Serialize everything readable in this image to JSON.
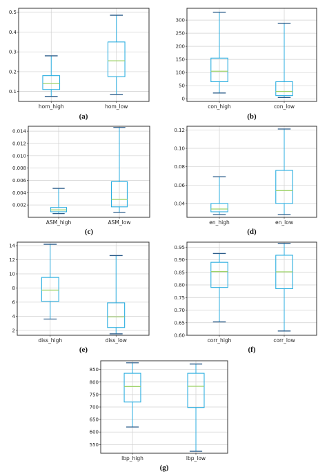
{
  "figure": {
    "panels": [
      {
        "label": "(a)"
      },
      {
        "label": "(b)"
      },
      {
        "label": "(c)"
      },
      {
        "label": "(d)"
      },
      {
        "label": "(e)"
      },
      {
        "label": "(f)"
      },
      {
        "label": "(g)"
      }
    ]
  },
  "colors": {
    "box": "#2aaee0",
    "median": "#9fd36a",
    "whisker_cap": "#2d5d8a",
    "grid": "#d0d0d0",
    "frame": "#333333"
  },
  "chart_data": [
    {
      "type": "box",
      "label": "(a)",
      "categories": [
        "hom_high",
        "hom_low"
      ],
      "ylim": [
        0.05,
        0.52
      ],
      "yticks": [
        0.1,
        0.2,
        0.3,
        0.4,
        0.5
      ],
      "ytick_labels": [
        "0.1",
        "0.2",
        "0.3",
        "0.4",
        "0.5"
      ],
      "grid": true,
      "boxes": [
        {
          "min": 0.075,
          "q1": 0.11,
          "median": 0.14,
          "q3": 0.18,
          "max": 0.28
        },
        {
          "min": 0.085,
          "q1": 0.175,
          "median": 0.255,
          "q3": 0.35,
          "max": 0.485
        }
      ]
    },
    {
      "type": "box",
      "label": "(b)",
      "categories": [
        "con_high",
        "con_low"
      ],
      "ylim": [
        -10,
        345
      ],
      "yticks": [
        0,
        50,
        100,
        150,
        200,
        250,
        300
      ],
      "ytick_labels": [
        "0",
        "50",
        "100",
        "150",
        "200",
        "250",
        "300"
      ],
      "grid": true,
      "boxes": [
        {
          "min": 22,
          "q1": 65,
          "median": 105,
          "q3": 155,
          "max": 330
        },
        {
          "min": 5,
          "q1": 12,
          "median": 28,
          "q3": 65,
          "max": 288
        }
      ]
    },
    {
      "type": "box",
      "label": "(c)",
      "categories": [
        "ASM_high",
        "ASM_low"
      ],
      "ylim": [
        0.0,
        0.0148
      ],
      "yticks": [
        0.002,
        0.004,
        0.006,
        0.008,
        0.01,
        0.012,
        0.014
      ],
      "ytick_labels": [
        "0.002",
        "0.004",
        "0.006",
        "0.008",
        "0.010",
        "0.012",
        "0.014"
      ],
      "grid": true,
      "boxes": [
        {
          "min": 0.0006,
          "q1": 0.0009,
          "median": 0.0012,
          "q3": 0.0016,
          "max": 0.0047
        },
        {
          "min": 0.0008,
          "q1": 0.0017,
          "median": 0.0029,
          "q3": 0.0058,
          "max": 0.0146
        }
      ]
    },
    {
      "type": "box",
      "label": "(d)",
      "categories": [
        "en_high",
        "en_low"
      ],
      "ylim": [
        0.025,
        0.124
      ],
      "yticks": [
        0.04,
        0.06,
        0.08,
        0.1,
        0.12
      ],
      "ytick_labels": [
        "0.04",
        "0.06",
        "0.08",
        "0.10",
        "0.12"
      ],
      "grid": true,
      "boxes": [
        {
          "min": 0.028,
          "q1": 0.031,
          "median": 0.034,
          "q3": 0.04,
          "max": 0.069
        },
        {
          "min": 0.028,
          "q1": 0.04,
          "median": 0.054,
          "q3": 0.076,
          "max": 0.121
        }
      ]
    },
    {
      "type": "box",
      "label": "(e)",
      "categories": [
        "diss_high",
        "diss_low"
      ],
      "ylim": [
        1.3,
        14.5
      ],
      "yticks": [
        2,
        4,
        6,
        8,
        10,
        12,
        14
      ],
      "ytick_labels": [
        "2",
        "4",
        "6",
        "8",
        "10",
        "12",
        "14"
      ],
      "grid": true,
      "boxes": [
        {
          "min": 3.6,
          "q1": 6.1,
          "median": 7.7,
          "q3": 9.5,
          "max": 14.2
        },
        {
          "min": 1.5,
          "q1": 2.4,
          "median": 3.9,
          "q3": 5.9,
          "max": 12.6
        }
      ]
    },
    {
      "type": "box",
      "label": "(f)",
      "categories": [
        "corr_high",
        "corr_low"
      ],
      "ylim": [
        0.6,
        0.97
      ],
      "yticks": [
        0.6,
        0.65,
        0.7,
        0.75,
        0.8,
        0.85,
        0.9,
        0.95
      ],
      "ytick_labels": [
        "0.60",
        "0.65",
        "0.70",
        "0.75",
        "0.80",
        "0.85",
        "0.90",
        "0.95"
      ],
      "grid": true,
      "boxes": [
        {
          "min": 0.653,
          "q1": 0.79,
          "median": 0.853,
          "q3": 0.89,
          "max": 0.925
        },
        {
          "min": 0.617,
          "q1": 0.785,
          "median": 0.852,
          "q3": 0.918,
          "max": 0.965
        }
      ]
    },
    {
      "type": "box",
      "label": "(g)",
      "categories": [
        "lbp_high",
        "lbp_low"
      ],
      "ylim": [
        515,
        885
      ],
      "yticks": [
        550,
        600,
        650,
        700,
        750,
        800,
        850
      ],
      "ytick_labels": [
        "550",
        "600",
        "650",
        "700",
        "750",
        "800",
        "850"
      ],
      "grid": true,
      "boxes": [
        {
          "min": 620,
          "q1": 720,
          "median": 782,
          "q3": 835,
          "max": 877
        },
        {
          "min": 523,
          "q1": 698,
          "median": 783,
          "q3": 835,
          "max": 872
        }
      ]
    }
  ]
}
